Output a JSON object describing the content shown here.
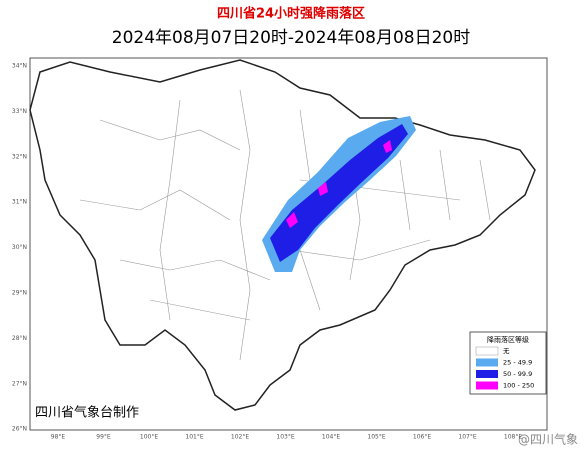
{
  "title": "四川省24小时强降雨落区",
  "subtitle": "2024年08月07日20时-2024年08月08日20时",
  "map": {
    "lat_labels": [
      "34°N",
      "33°N",
      "32°N",
      "31°N",
      "30°N",
      "29°N",
      "28°N",
      "27°N",
      "26°N"
    ],
    "lon_labels": [
      "98°E",
      "99°E",
      "100°E",
      "101°E",
      "102°E",
      "103°E",
      "104°E",
      "105°E",
      "106°E",
      "107°E",
      "108°E"
    ]
  },
  "legend": {
    "title": "降雨落区等级",
    "items": [
      {
        "label": "无",
        "color": "#ffffff"
      },
      {
        "label": "25 - 49.9",
        "color": "#5aaaf0"
      },
      {
        "label": "50 - 99.9",
        "color": "#1e1ee6"
      },
      {
        "label": "100 - 250",
        "color": "#ff00ff"
      }
    ]
  },
  "credit": "四川省气象台制作",
  "watermark": "@四川气象"
}
